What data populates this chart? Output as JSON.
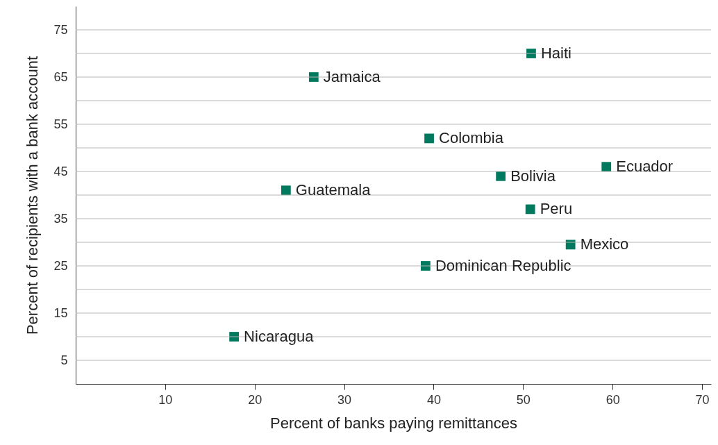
{
  "chart_data": {
    "type": "scatter",
    "xlabel": "Percent of banks paying remittances",
    "ylabel": "Percent of recipients with a bank account",
    "xlim": [
      0,
      71
    ],
    "ylim": [
      0,
      80
    ],
    "xticks": [
      10,
      20,
      30,
      40,
      50,
      60,
      70
    ],
    "yticks": [
      5,
      {
        "value": 10,
        "label": null
      },
      15,
      {
        "value": 20,
        "label": null
      },
      25,
      {
        "value": 30,
        "label": null
      },
      35,
      {
        "value": 40,
        "label": null
      },
      45,
      {
        "value": 50,
        "label": null
      },
      55,
      {
        "value": 60,
        "label": null
      },
      65,
      {
        "value": 70,
        "label": null
      },
      75
    ],
    "grid": "y",
    "marker": "square",
    "series": [
      {
        "name": "Haiti",
        "color": "#007a5e",
        "x": [
          50.9
        ],
        "values": [
          70
        ]
      },
      {
        "name": "Jamaica",
        "color": "#007a5e",
        "x": [
          26.6
        ],
        "values": [
          65
        ]
      },
      {
        "name": "Colombia",
        "color": "#007a5e",
        "x": [
          39.5
        ],
        "values": [
          52
        ]
      },
      {
        "name": "Ecuador",
        "color": "#007a5e",
        "x": [
          59.3
        ],
        "values": [
          46
        ]
      },
      {
        "name": "Bolivia",
        "color": "#007a5e",
        "x": [
          47.5
        ],
        "values": [
          44
        ]
      },
      {
        "name": "Guatemala",
        "color": "#007a5e",
        "x": [
          23.5
        ],
        "values": [
          41
        ]
      },
      {
        "name": "Peru",
        "color": "#007a5e",
        "x": [
          50.8
        ],
        "values": [
          37
        ]
      },
      {
        "name": "Mexico",
        "color": "#007a5e",
        "x": [
          55.3
        ],
        "values": [
          29.5
        ]
      },
      {
        "name": "Dominican Republic",
        "color": "#007a5e",
        "x": [
          39.1
        ],
        "values": [
          25
        ]
      },
      {
        "name": "Nicaragua",
        "color": "#007a5e",
        "x": [
          17.7
        ],
        "values": [
          10
        ]
      }
    ]
  }
}
